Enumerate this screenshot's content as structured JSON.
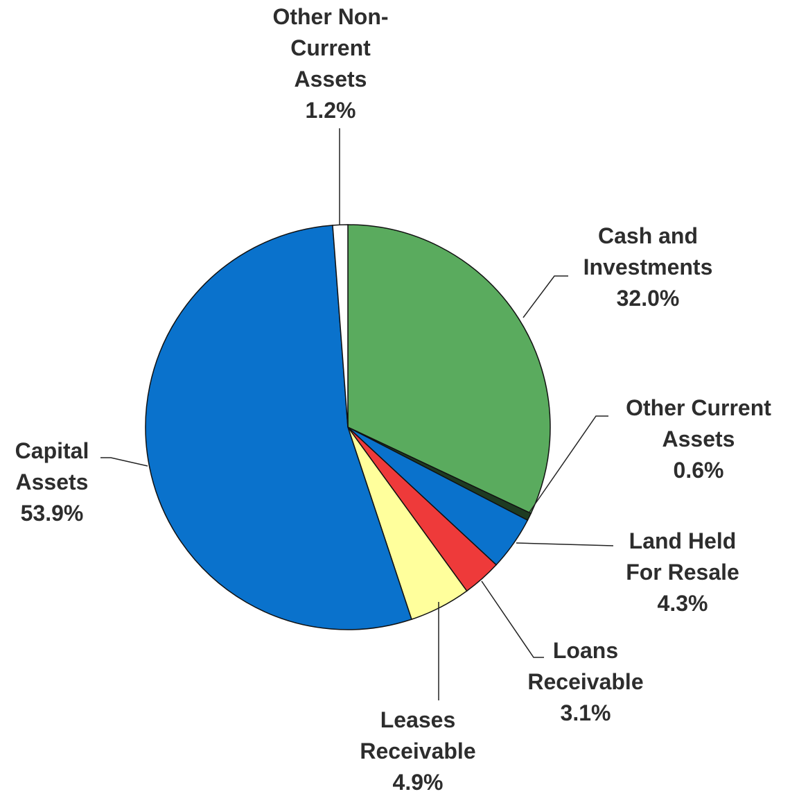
{
  "chart_data": {
    "type": "pie",
    "categories": [
      "Cash and Investments",
      "Other Current Assets",
      "Land Held For Resale",
      "Loans Receivable",
      "Leases Receivable",
      "Capital Assets",
      "Other Non-Current Assets"
    ],
    "values": [
      32.0,
      0.6,
      4.3,
      3.1,
      4.9,
      53.9,
      1.2
    ],
    "value_labels": [
      "32.0%",
      "0.6%",
      "4.3%",
      "3.1%",
      "4.9%",
      "53.9%",
      "1.2%"
    ],
    "colors": [
      "#5aab5e",
      "#1e3b22",
      "#0a72cc",
      "#ee3a3a",
      "#ffff9c",
      "#0a72cc",
      "#ffffff"
    ]
  }
}
